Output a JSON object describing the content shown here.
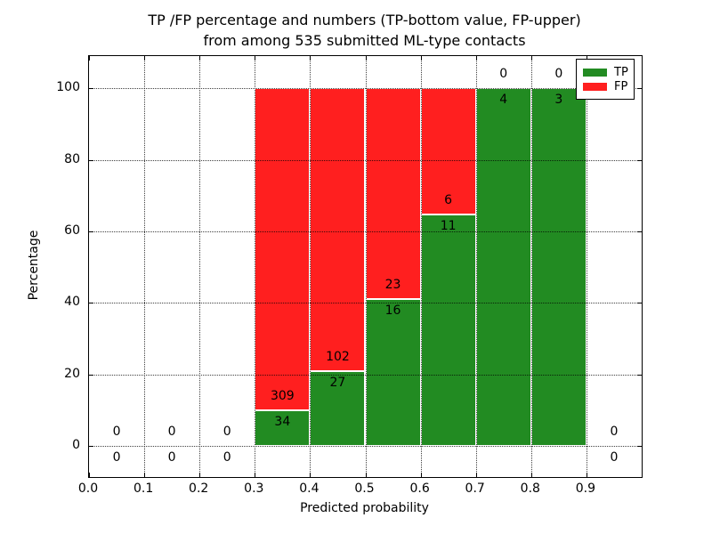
{
  "title": {
    "line1": "TP /FP percentage and numbers (TP-bottom value, FP-upper)",
    "line2": "from among 535 submitted ML-type contacts"
  },
  "axes": {
    "xlabel": "Predicted probability",
    "ylabel": "Percentage",
    "x_tick_labels": [
      "0.0",
      "0.1",
      "0.2",
      "0.3",
      "0.4",
      "0.5",
      "0.6",
      "0.7",
      "0.8",
      "0.9"
    ],
    "y_tick_labels": [
      "0",
      "20",
      "40",
      "60",
      "80",
      "100"
    ]
  },
  "legend": {
    "position": "upper right",
    "items": [
      {
        "label": "TP",
        "color": "#228b22"
      },
      {
        "label": "FP",
        "color": "#ff1f1f"
      }
    ]
  },
  "chart_data": {
    "type": "bar",
    "stacked": true,
    "normalized": "percent",
    "title": "TP /FP percentage and numbers (TP-bottom value, FP-upper) from among 535 submitted ML-type contacts",
    "xlabel": "Predicted probability",
    "ylabel": "Percentage",
    "total_contacts": 535,
    "bin_edges": [
      0.0,
      0.1,
      0.2,
      0.3,
      0.4,
      0.5,
      0.6,
      0.7,
      0.8,
      0.9,
      1.0
    ],
    "x_ticks": [
      0.0,
      0.1,
      0.2,
      0.3,
      0.4,
      0.5,
      0.6,
      0.7,
      0.8,
      0.9
    ],
    "y_ticks": [
      0,
      20,
      40,
      60,
      80,
      100
    ],
    "xlim": [
      0.0,
      1.0
    ],
    "ylim": [
      -9,
      109
    ],
    "grid": "dotted",
    "legend_position": "upper right",
    "series": [
      {
        "name": "TP",
        "color": "#228b22",
        "counts": [
          0,
          0,
          0,
          34,
          27,
          16,
          11,
          4,
          3,
          0
        ]
      },
      {
        "name": "FP",
        "color": "#ff1f1f",
        "counts": [
          0,
          0,
          0,
          309,
          102,
          23,
          6,
          0,
          0,
          0
        ]
      }
    ],
    "tp_percent_by_bin": [
      0,
      0,
      0,
      9.9,
      20.9,
      41.0,
      64.7,
      100.0,
      100.0,
      0
    ]
  }
}
